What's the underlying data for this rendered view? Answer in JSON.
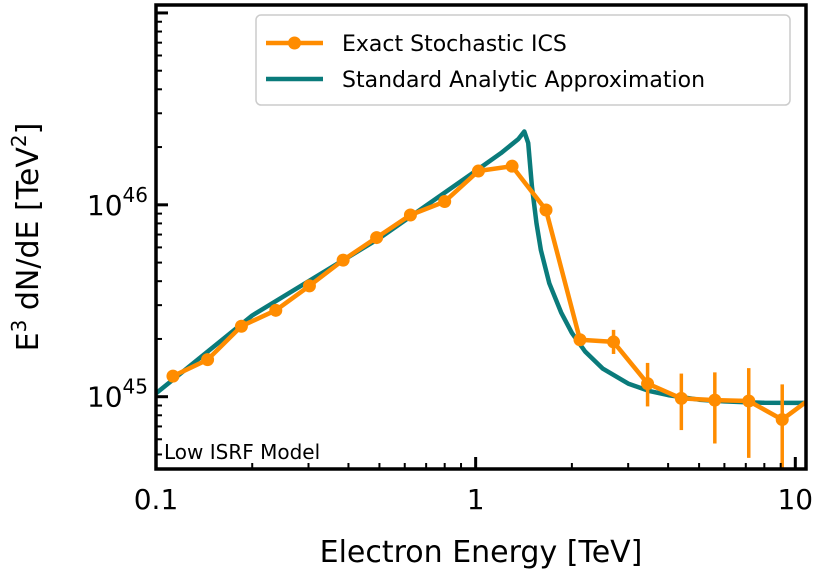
{
  "chart_data": {
    "type": "line",
    "title": "",
    "xlabel": "Electron Energy [TeV]",
    "ylabel_parts": {
      "base": "E",
      "sup1": "3",
      "mid": " dN/dE [TeV",
      "sup2": "2",
      "end": "]"
    },
    "xscale": "log",
    "yscale": "log",
    "xlim": [
      0.1,
      10.8
    ],
    "ylim": [
      4.2e+44,
      1.1e+47
    ],
    "x_ticks": [
      {
        "value": 0.1,
        "label": "0.1"
      },
      {
        "value": 1,
        "label": "1"
      },
      {
        "value": 10,
        "label": "10"
      }
    ],
    "y_ticks": [
      {
        "value": 1e+45,
        "base": "10",
        "exp": "45"
      },
      {
        "value": 1e+46,
        "base": "10",
        "exp": "46"
      }
    ],
    "series": [
      {
        "name": "Exact Stochastic ICS",
        "style": "line-markers-errorbars",
        "color": "#ff8c00",
        "x": [
          0.113,
          0.145,
          0.185,
          0.237,
          0.302,
          0.385,
          0.49,
          0.625,
          0.8,
          1.02,
          1.3,
          1.66,
          2.12,
          2.7,
          3.45,
          4.4,
          5.6,
          7.15,
          9.1,
          10.8
        ],
        "y": [
          1.28e+45,
          1.56e+45,
          2.33e+45,
          2.82e+45,
          3.78e+45,
          5.15e+45,
          6.75e+45,
          8.85e+45,
          1.04e+46,
          1.5e+46,
          1.59e+46,
          9.4e+45,
          1.98e+45,
          1.93e+45,
          1.17e+45,
          9.8e+44,
          9.6e+44,
          9.5e+44,
          7.6e+44,
          9.4e+44
        ],
        "yerr_low": [
          0,
          0,
          0,
          0,
          0,
          0,
          0,
          0,
          0,
          0,
          0,
          0,
          0,
          2.6e+44,
          2.8e+44,
          3.1e+44,
          3.9e+44,
          4.7e+44,
          3.4e+44,
          0
        ],
        "yerr_high": [
          0,
          0,
          0,
          0,
          0,
          0,
          0,
          0,
          0,
          0,
          0,
          0,
          0,
          3e+44,
          3.3e+44,
          3.4e+44,
          3.8e+44,
          4.6e+44,
          4e+44,
          0
        ]
      },
      {
        "name": "Standard Analytic Approximation",
        "style": "line",
        "color": "#0a7b7b",
        "x": [
          0.1,
          0.2,
          0.5,
          1.0,
          1.2,
          1.36,
          1.42,
          1.46,
          1.5,
          1.55,
          1.6,
          1.7,
          1.85,
          2.0,
          2.2,
          2.5,
          3.0,
          3.5,
          4.0,
          5.0,
          6.0,
          7.0,
          8.0,
          10.0,
          10.8
        ],
        "y": [
          1.04e+45,
          2.65e+45,
          6.7e+45,
          1.5e+46,
          1.86e+46,
          2.2e+46,
          2.41e+46,
          2.1e+46,
          1.25e+46,
          8e+45,
          5.8e+45,
          3.9e+45,
          2.75e+45,
          2.15e+45,
          1.72e+45,
          1.4e+45,
          1.17e+45,
          1.07e+45,
          1.02e+45,
          9.65e+44,
          9.45e+44,
          9.35e+44,
          9.3e+44,
          9.28e+44,
          9.28e+44
        ]
      }
    ],
    "legend": {
      "placement": "upper-center",
      "entries": [
        "Exact Stochastic ICS",
        "Standard Analytic Approximation"
      ]
    },
    "annotation": {
      "text": "Low ISRF Model",
      "placement": "lower-left"
    }
  }
}
